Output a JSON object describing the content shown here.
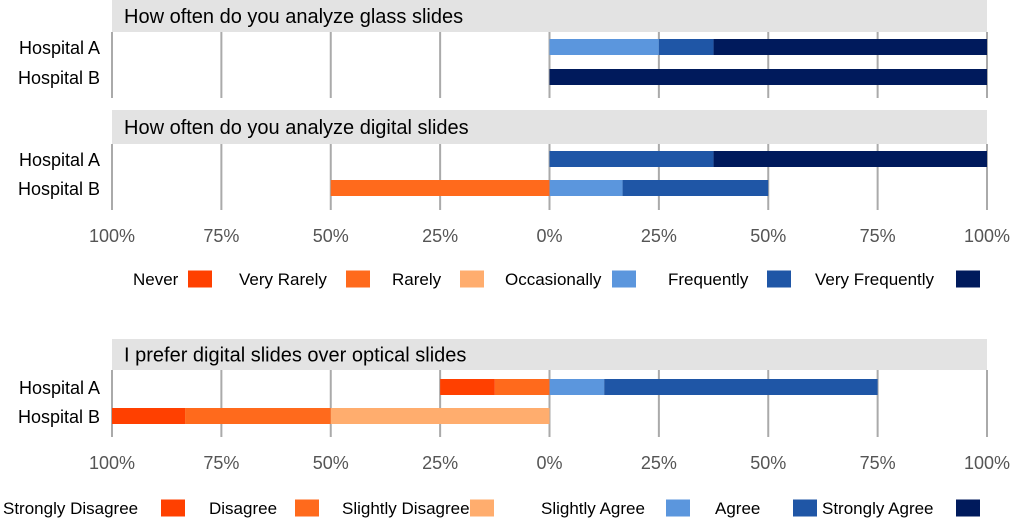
{
  "chart_data": [
    {
      "type": "bar",
      "orientation": "horizontal",
      "stacked": "diverging",
      "title": "How often do you analyze glass slides",
      "categories": [
        "Hospital A",
        "Hospital B"
      ],
      "xlim": [
        -100,
        100
      ],
      "x_ticks": [
        -100,
        -75,
        -50,
        -25,
        0,
        25,
        50,
        75,
        100
      ],
      "x_tick_labels": [
        "100%",
        "75%",
        "50%",
        "25%",
        "0%",
        "25%",
        "50%",
        "75%",
        "100%"
      ],
      "grid": true,
      "show_x_ticks": false,
      "series": [
        {
          "name": "Never",
          "color": "#FF4000",
          "side": "negative",
          "values": [
            0,
            0
          ]
        },
        {
          "name": "Very Rarely",
          "color": "#FF6A1C",
          "side": "negative",
          "values": [
            0,
            0
          ]
        },
        {
          "name": "Rarely",
          "color": "#FFAD6E",
          "side": "negative",
          "values": [
            0,
            0
          ]
        },
        {
          "name": "Occasionally",
          "color": "#5B96DD",
          "side": "positive",
          "values": [
            25,
            0
          ]
        },
        {
          "name": "Frequently",
          "color": "#1F56A6",
          "side": "positive",
          "values": [
            12.5,
            0
          ]
        },
        {
          "name": "Very Frequently",
          "color": "#001A5C",
          "side": "positive",
          "values": [
            62.5,
            100
          ]
        }
      ]
    },
    {
      "type": "bar",
      "orientation": "horizontal",
      "stacked": "diverging",
      "title": "How often do you analyze digital slides",
      "categories": [
        "Hospital A",
        "Hospital B"
      ],
      "xlim": [
        -100,
        100
      ],
      "x_ticks": [
        -100,
        -75,
        -50,
        -25,
        0,
        25,
        50,
        75,
        100
      ],
      "x_tick_labels": [
        "100%",
        "75%",
        "50%",
        "25%",
        "0%",
        "25%",
        "50%",
        "75%",
        "100%"
      ],
      "grid": true,
      "show_x_ticks": true,
      "series": [
        {
          "name": "Never",
          "color": "#FF4000",
          "side": "negative",
          "values": [
            0,
            0
          ]
        },
        {
          "name": "Very Rarely",
          "color": "#FF6A1C",
          "side": "negative",
          "values": [
            0,
            50
          ]
        },
        {
          "name": "Rarely",
          "color": "#FFAD6E",
          "side": "negative",
          "values": [
            0,
            0
          ]
        },
        {
          "name": "Occasionally",
          "color": "#5B96DD",
          "side": "positive",
          "values": [
            0,
            16.7
          ]
        },
        {
          "name": "Frequently",
          "color": "#1F56A6",
          "side": "positive",
          "values": [
            37.5,
            33.3
          ]
        },
        {
          "name": "Very Frequently",
          "color": "#001A5C",
          "side": "positive",
          "values": [
            62.5,
            0
          ]
        }
      ]
    },
    {
      "type": "bar",
      "orientation": "horizontal",
      "stacked": "diverging",
      "title": "I prefer digital slides over optical slides",
      "categories": [
        "Hospital A",
        "Hospital B"
      ],
      "xlim": [
        -100,
        100
      ],
      "x_ticks": [
        -100,
        -75,
        -50,
        -25,
        0,
        25,
        50,
        75,
        100
      ],
      "x_tick_labels": [
        "100%",
        "75%",
        "50%",
        "25%",
        "0%",
        "25%",
        "50%",
        "75%",
        "100%"
      ],
      "grid": true,
      "show_x_ticks": true,
      "series": [
        {
          "name": "Strongly Disagree",
          "color": "#FF4000",
          "side": "negative",
          "values": [
            12.5,
            16.7
          ]
        },
        {
          "name": "Disagree",
          "color": "#FF6A1C",
          "side": "negative",
          "values": [
            12.5,
            33.3
          ]
        },
        {
          "name": "Slightly Disagree",
          "color": "#FFAD6E",
          "side": "negative",
          "values": [
            0,
            50
          ]
        },
        {
          "name": "Slightly Agree",
          "color": "#5B96DD",
          "side": "positive",
          "values": [
            12.5,
            0
          ]
        },
        {
          "name": "Agree",
          "color": "#1F56A6",
          "side": "positive",
          "values": [
            62.5,
            0
          ]
        },
        {
          "name": "Strongly Agree",
          "color": "#001A5C",
          "side": "positive",
          "values": [
            0,
            0
          ]
        }
      ]
    }
  ],
  "legends": [
    {
      "placement": "below-second-chart",
      "items": [
        {
          "label": "Never",
          "color": "#FF4000"
        },
        {
          "label": "Very Rarely",
          "color": "#FF6A1C"
        },
        {
          "label": "Rarely",
          "color": "#FFAD6E"
        },
        {
          "label": "Occasionally",
          "color": "#5B96DD"
        },
        {
          "label": "Frequently",
          "color": "#1F56A6"
        },
        {
          "label": "Very Frequently",
          "color": "#001A5C"
        }
      ]
    },
    {
      "placement": "below-third-chart",
      "items": [
        {
          "label": "Strongly Disagree",
          "color": "#FF4000"
        },
        {
          "label": "Disagree",
          "color": "#FF6A1C"
        },
        {
          "label": "Slightly Disagree",
          "color": "#FFAD6E"
        },
        {
          "label": "Slightly Agree",
          "color": "#5B96DD"
        },
        {
          "label": "Agree",
          "color": "#1F56A6"
        },
        {
          "label": "Strongly Agree",
          "color": "#001A5C"
        }
      ]
    }
  ],
  "colors": {
    "title_band": "#E3E3E3",
    "grid": "#AAAAAA",
    "text": "#000000",
    "tick_text": "#555555"
  }
}
